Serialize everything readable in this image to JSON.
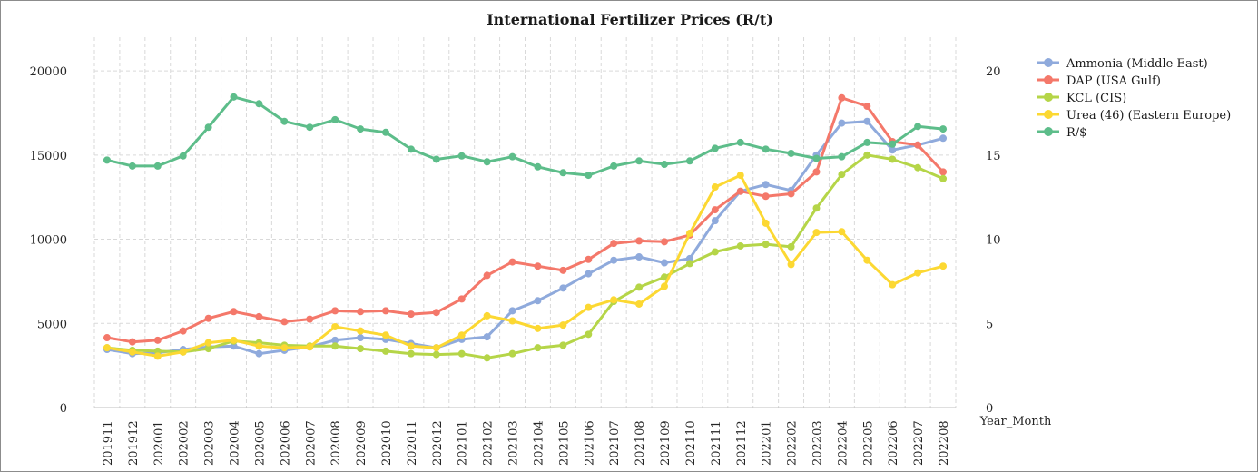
{
  "chart_data": {
    "type": "line",
    "title": "International Fertilizer Prices (R/t)",
    "xlabel": "Year_Month",
    "ylabel": "",
    "ylim": [
      0,
      22000
    ],
    "y2lim": [
      0,
      22
    ],
    "y_ticks": [
      0,
      5000,
      10000,
      15000,
      20000
    ],
    "y2_ticks": [
      0,
      5,
      10,
      15,
      20
    ],
    "grid": true,
    "legend_position": "right",
    "categories": [
      "201911",
      "201912",
      "202001",
      "202002",
      "202003",
      "202004",
      "202005",
      "202006",
      "202007",
      "202008",
      "202009",
      "202010",
      "202011",
      "202012",
      "202101",
      "202102",
      "202103",
      "202104",
      "202105",
      "202106",
      "202107",
      "202108",
      "202109",
      "202110",
      "202111",
      "202112",
      "202201",
      "202202",
      "202203",
      "202204",
      "202205",
      "202206",
      "202207",
      "202208"
    ],
    "series": [
      {
        "name": "Ammonia (Middle East)",
        "axis": "left",
        "color": "#8faadc",
        "values": [
          3450,
          3200,
          3250,
          3450,
          3600,
          3650,
          3200,
          3400,
          3600,
          4000,
          4150,
          4050,
          3800,
          3550,
          4050,
          4200,
          5750,
          6350,
          7100,
          7950,
          8750,
          8950,
          8600,
          8850,
          11100,
          12850,
          13250,
          12900,
          15000,
          16900,
          17000,
          15300,
          15600,
          16000
        ]
      },
      {
        "name": "DAP (USA Gulf)",
        "axis": "left",
        "color": "#f4786a",
        "values": [
          4150,
          3900,
          4000,
          4550,
          5300,
          5700,
          5400,
          5100,
          5250,
          5750,
          5700,
          5750,
          5550,
          5650,
          6450,
          7850,
          8650,
          8400,
          8150,
          8800,
          9750,
          9900,
          9850,
          10250,
          11750,
          12850,
          12550,
          12700,
          14000,
          18400,
          17900,
          15800,
          15600,
          14000
        ]
      },
      {
        "name": "KCL (CIS)",
        "axis": "left",
        "color": "#b5d548",
        "values": [
          3550,
          3400,
          3350,
          3300,
          3500,
          3950,
          3850,
          3700,
          3650,
          3650,
          3500,
          3350,
          3200,
          3150,
          3200,
          2950,
          3200,
          3550,
          3700,
          4350,
          6300,
          7150,
          7750,
          8550,
          9250,
          9600,
          9700,
          9550,
          11850,
          13850,
          15000,
          14750,
          14250,
          13600
        ]
      },
      {
        "name": "Urea (46) (Eastern Europe)",
        "axis": "left",
        "color": "#fcd832",
        "values": [
          3550,
          3300,
          3050,
          3300,
          3850,
          4000,
          3650,
          3550,
          3600,
          4800,
          4550,
          4300,
          3650,
          3550,
          4300,
          5450,
          5150,
          4700,
          4900,
          5950,
          6400,
          6150,
          7200,
          10350,
          13100,
          13800,
          10950,
          8500,
          10400,
          10450,
          8750,
          7300,
          8000,
          8400
        ]
      },
      {
        "name": "R/$",
        "axis": "right",
        "color": "#5dbd8a",
        "values": [
          14.7,
          14.35,
          14.35,
          14.95,
          16.65,
          18.45,
          18.05,
          17.0,
          16.65,
          17.1,
          16.55,
          16.35,
          15.35,
          14.75,
          14.95,
          14.6,
          14.9,
          14.3,
          13.95,
          13.8,
          14.35,
          14.65,
          14.45,
          14.65,
          15.4,
          15.75,
          15.35,
          15.1,
          14.8,
          14.9,
          15.75,
          15.65,
          16.7,
          16.55
        ]
      }
    ]
  }
}
